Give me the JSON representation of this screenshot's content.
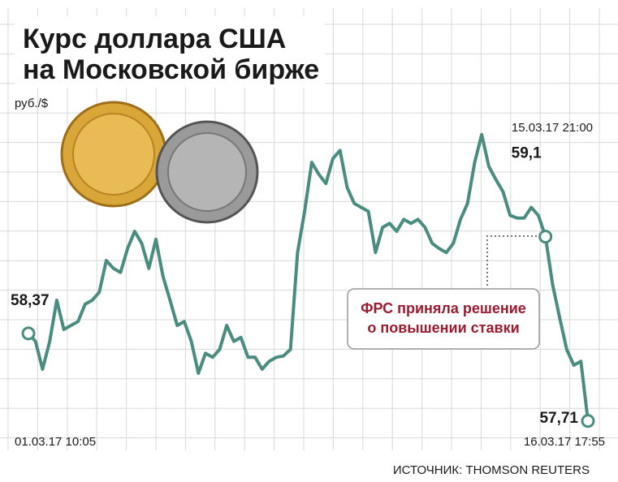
{
  "chart_data": {
    "type": "line",
    "title": [
      "Курс доллара США",
      "на Московской бирже"
    ],
    "y_unit": "руб./$",
    "annotation": "ФРС приняла решение о повышении ставки",
    "source": "ИСТОЧНИК: THOMSON REUTERS",
    "color": "#4a8c80",
    "grid": true,
    "ylim": [
      57.58,
      60.15
    ],
    "categories": [
      "01.03.17 10:05",
      null,
      null,
      null,
      null,
      null,
      null,
      null,
      null,
      null,
      null,
      null,
      null,
      null,
      null,
      null,
      null,
      null,
      null,
      null,
      null,
      null,
      null,
      null,
      null,
      null,
      null,
      null,
      null,
      null,
      null,
      null,
      null,
      null,
      null,
      null,
      null,
      null,
      null,
      null,
      null,
      null,
      null,
      null,
      null,
      null,
      null,
      null,
      null,
      null,
      null,
      null,
      null,
      null,
      null,
      null,
      null,
      null,
      null,
      null,
      null,
      null,
      null,
      null,
      null,
      null,
      null,
      null,
      null,
      null,
      null,
      null,
      null,
      "15.03.17 21:00",
      null,
      null,
      null,
      null,
      null,
      "16.03.17 17:55"
    ],
    "values": [
      58.37,
      58.31,
      58.1,
      58.31,
      58.62,
      58.4,
      58.43,
      58.46,
      58.59,
      58.62,
      58.68,
      58.92,
      58.86,
      58.83,
      59.01,
      59.14,
      59.05,
      58.86,
      59.08,
      58.8,
      58.62,
      58.43,
      58.46,
      58.31,
      58.07,
      58.22,
      58.19,
      58.25,
      58.43,
      58.31,
      58.34,
      58.19,
      58.19,
      58.1,
      58.16,
      58.19,
      58.2,
      58.25,
      58.98,
      59.29,
      59.66,
      59.57,
      59.5,
      59.69,
      59.75,
      59.47,
      59.35,
      59.32,
      59.29,
      58.98,
      59.17,
      59.2,
      59.14,
      59.23,
      59.2,
      59.23,
      59.17,
      59.05,
      59.01,
      58.98,
      59.05,
      59.23,
      59.35,
      59.66,
      59.87,
      59.63,
      59.53,
      59.44,
      59.26,
      59.24,
      59.24,
      59.32,
      59.26,
      59.1,
      58.74,
      58.49,
      58.25,
      58.13,
      58.16,
      57.71
    ],
    "value_labels": [
      "58,37",
      null,
      null,
      null,
      null,
      null,
      null,
      null,
      null,
      null,
      null,
      null,
      null,
      null,
      null,
      null,
      null,
      null,
      null,
      null,
      null,
      null,
      null,
      null,
      null,
      null,
      null,
      null,
      null,
      null,
      null,
      null,
      null,
      null,
      null,
      null,
      null,
      null,
      null,
      null,
      null,
      null,
      null,
      null,
      null,
      null,
      null,
      null,
      null,
      null,
      null,
      null,
      null,
      null,
      null,
      null,
      null,
      null,
      null,
      null,
      null,
      null,
      null,
      null,
      null,
      null,
      null,
      null,
      null,
      null,
      null,
      null,
      null,
      "59,1",
      null,
      null,
      null,
      null,
      null,
      "57,71"
    ]
  }
}
